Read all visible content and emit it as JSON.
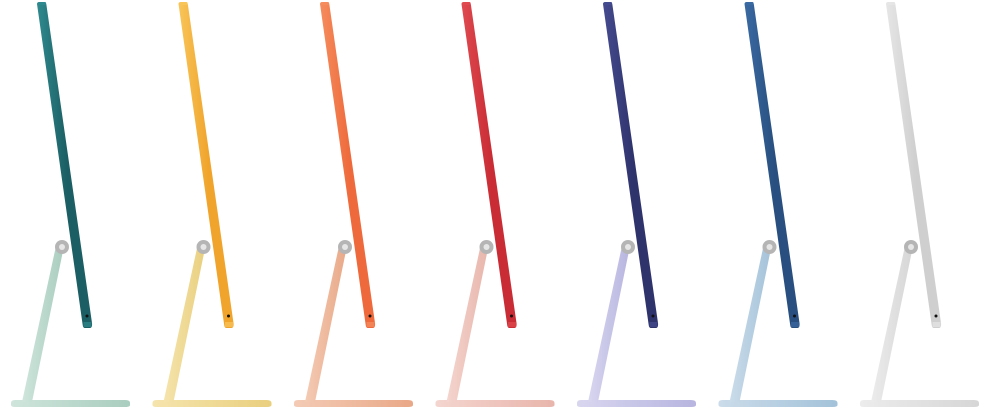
{
  "image": {
    "subject": "imac-side-profiles",
    "background": "#ffffff"
  },
  "variants": [
    {
      "name": "green",
      "display_color": "#1b5e63",
      "display_highlight": "#2f8a8f",
      "stand_color": "#a9cdbf",
      "stand_highlight": "#cfe5dc"
    },
    {
      "name": "yellow",
      "display_color": "#f0a42c",
      "display_highlight": "#f8c55a",
      "stand_color": "#e9cf7e",
      "stand_highlight": "#f5e4ad"
    },
    {
      "name": "orange",
      "display_color": "#ee6a3c",
      "display_highlight": "#f58d5e",
      "stand_color": "#e9a887",
      "stand_highlight": "#f4cbb5"
    },
    {
      "name": "pink",
      "display_color": "#c92c34",
      "display_highlight": "#df4a50",
      "stand_color": "#e8b5ab",
      "stand_highlight": "#f4d5cf"
    },
    {
      "name": "purple",
      "display_color": "#2f336c",
      "display_highlight": "#454b8f",
      "stand_color": "#b7b5df",
      "stand_highlight": "#d8d6ef"
    },
    {
      "name": "blue",
      "display_color": "#284f7f",
      "display_highlight": "#3a6aa3",
      "stand_color": "#a3c2d9",
      "stand_highlight": "#cbdcea"
    },
    {
      "name": "silver",
      "display_color": "#cfcfcf",
      "display_highlight": "#e6e6e6",
      "stand_color": "#d6d6d6",
      "stand_highlight": "#ececec"
    }
  ],
  "hinge_color": "#b5b5b5"
}
